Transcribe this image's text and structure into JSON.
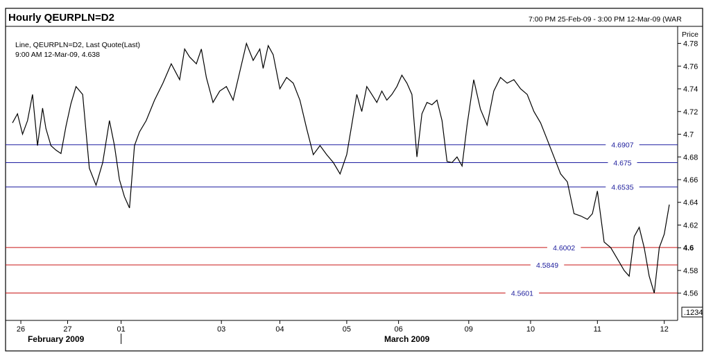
{
  "header": {
    "title": "Hourly QEURPLN=D2",
    "range": "7:00 PM 25-Feb-09 - 3:00 PM 12-Mar-09 (WAR"
  },
  "legend": {
    "line1": "Line, QEURPLN=D2, Last Quote(Last)",
    "line2": "9:00 AM 12-Mar-09, 4.638"
  },
  "colors": {
    "price_line": "#000000",
    "resistance": "#1c1ca0",
    "support": "#c81414",
    "level_label": "#1c1c9c"
  },
  "chart_data": {
    "type": "line",
    "title": "Hourly QEURPLN=D2",
    "ylabel": "Price",
    "ylim": [
      4.536,
      4.795
    ],
    "yticks": [
      "4.56",
      "4.58",
      "4.6",
      "4.62",
      "4.64",
      "4.66",
      "4.68",
      "4.7",
      "4.72",
      "4.74",
      "4.76",
      "4.78"
    ],
    "ytick_values": [
      4.56,
      4.58,
      4.6,
      4.62,
      4.64,
      4.66,
      4.68,
      4.7,
      4.72,
      4.74,
      4.76,
      4.78
    ],
    "highlight_tick": "4.6",
    "last_value_tag": ".1234",
    "day_ticks": [
      "26",
      "27",
      "01",
      "03",
      "04",
      "05",
      "06",
      "09",
      "10",
      "11",
      "12"
    ],
    "day_tick_index": [
      0.5,
      3.3,
      6.5,
      12.5,
      16.0,
      20.0,
      23.1,
      27.3,
      31.0,
      35.0,
      39.0
    ],
    "months": [
      {
        "label": "February 2009",
        "index": 2.6
      },
      {
        "label": "March 2009",
        "index": 23.6
      }
    ],
    "month_divider_index": 6.5,
    "x_index_range": [
      0,
      39.8
    ],
    "levels": [
      {
        "value": 4.6907,
        "label": "4.6907",
        "kind": "resistance",
        "label_index": 36.5
      },
      {
        "value": 4.675,
        "label": "4.675",
        "kind": "resistance",
        "label_index": 36.5
      },
      {
        "value": 4.6535,
        "label": "4.6535",
        "kind": "resistance",
        "label_index": 36.5
      },
      {
        "value": 4.6002,
        "label": "4.6002",
        "kind": "support",
        "label_index": 33.0
      },
      {
        "value": 4.5849,
        "label": "4.5849",
        "kind": "support",
        "label_index": 32.0
      },
      {
        "value": 4.5601,
        "label": "4.5601",
        "kind": "support",
        "label_index": 30.5
      }
    ],
    "series": [
      {
        "x": [
          0,
          0.3,
          0.6,
          0.9,
          1.2,
          1.5,
          1.8,
          2.0,
          2.3,
          2.6,
          2.9,
          3.2,
          3.5,
          3.8,
          4.2,
          4.6,
          5.0,
          5.4,
          5.8,
          6.1,
          6.4,
          6.7,
          7.0,
          7.3,
          7.6,
          8.0,
          8.5,
          9.0,
          9.5,
          10.0,
          10.3,
          10.6,
          11.0,
          11.3,
          11.6,
          12.0,
          12.4,
          12.8,
          13.2,
          13.6,
          14.0,
          14.4,
          14.8,
          15.0,
          15.3,
          15.6,
          16.0,
          16.4,
          16.8,
          17.2,
          17.6,
          18.0,
          18.4,
          18.8,
          19.2,
          19.6,
          20.0,
          20.3,
          20.6,
          20.9,
          21.2,
          21.5,
          21.8,
          22.1,
          22.4,
          22.7,
          23.0,
          23.3,
          23.6,
          23.9,
          24.2,
          24.5,
          24.8,
          25.1,
          25.4,
          25.7,
          26.0,
          26.3,
          26.6,
          26.9,
          27.2,
          27.6,
          28.0,
          28.4,
          28.8,
          29.2,
          29.6,
          30.0,
          30.4,
          30.8,
          31.2,
          31.6,
          32.0,
          32.4,
          32.8,
          33.2,
          33.6,
          34.0,
          34.4,
          34.7,
          35.0,
          35.4,
          35.8,
          36.2,
          36.6,
          36.9,
          37.2,
          37.5,
          37.8,
          38.1,
          38.4,
          38.7,
          39.0,
          39.3
        ],
        "y": [
          4.71,
          4.718,
          4.7,
          4.712,
          4.735,
          4.69,
          4.723,
          4.705,
          4.69,
          4.686,
          4.683,
          4.707,
          4.727,
          4.742,
          4.735,
          4.67,
          4.655,
          4.675,
          4.712,
          4.69,
          4.66,
          4.645,
          4.635,
          4.69,
          4.702,
          4.712,
          4.73,
          4.745,
          4.762,
          4.748,
          4.775,
          4.768,
          4.762,
          4.775,
          4.75,
          4.728,
          4.738,
          4.742,
          4.73,
          4.755,
          4.78,
          4.765,
          4.775,
          4.758,
          4.778,
          4.77,
          4.74,
          4.75,
          4.745,
          4.73,
          4.705,
          4.682,
          4.69,
          4.682,
          4.675,
          4.665,
          4.682,
          4.708,
          4.735,
          4.72,
          4.742,
          4.735,
          4.728,
          4.738,
          4.73,
          4.735,
          4.742,
          4.752,
          4.745,
          4.735,
          4.68,
          4.718,
          4.728,
          4.726,
          4.73,
          4.712,
          4.676,
          4.675,
          4.68,
          4.672,
          4.708,
          4.748,
          4.722,
          4.708,
          4.738,
          4.75,
          4.745,
          4.748,
          4.74,
          4.735,
          4.72,
          4.71,
          4.695,
          4.68,
          4.665,
          4.658,
          4.63,
          4.628,
          4.625,
          4.63,
          4.65,
          4.605,
          4.6,
          4.59,
          4.58,
          4.575,
          4.61,
          4.618,
          4.6,
          4.575,
          4.56,
          4.6,
          4.612,
          4.638
        ]
      }
    ]
  }
}
